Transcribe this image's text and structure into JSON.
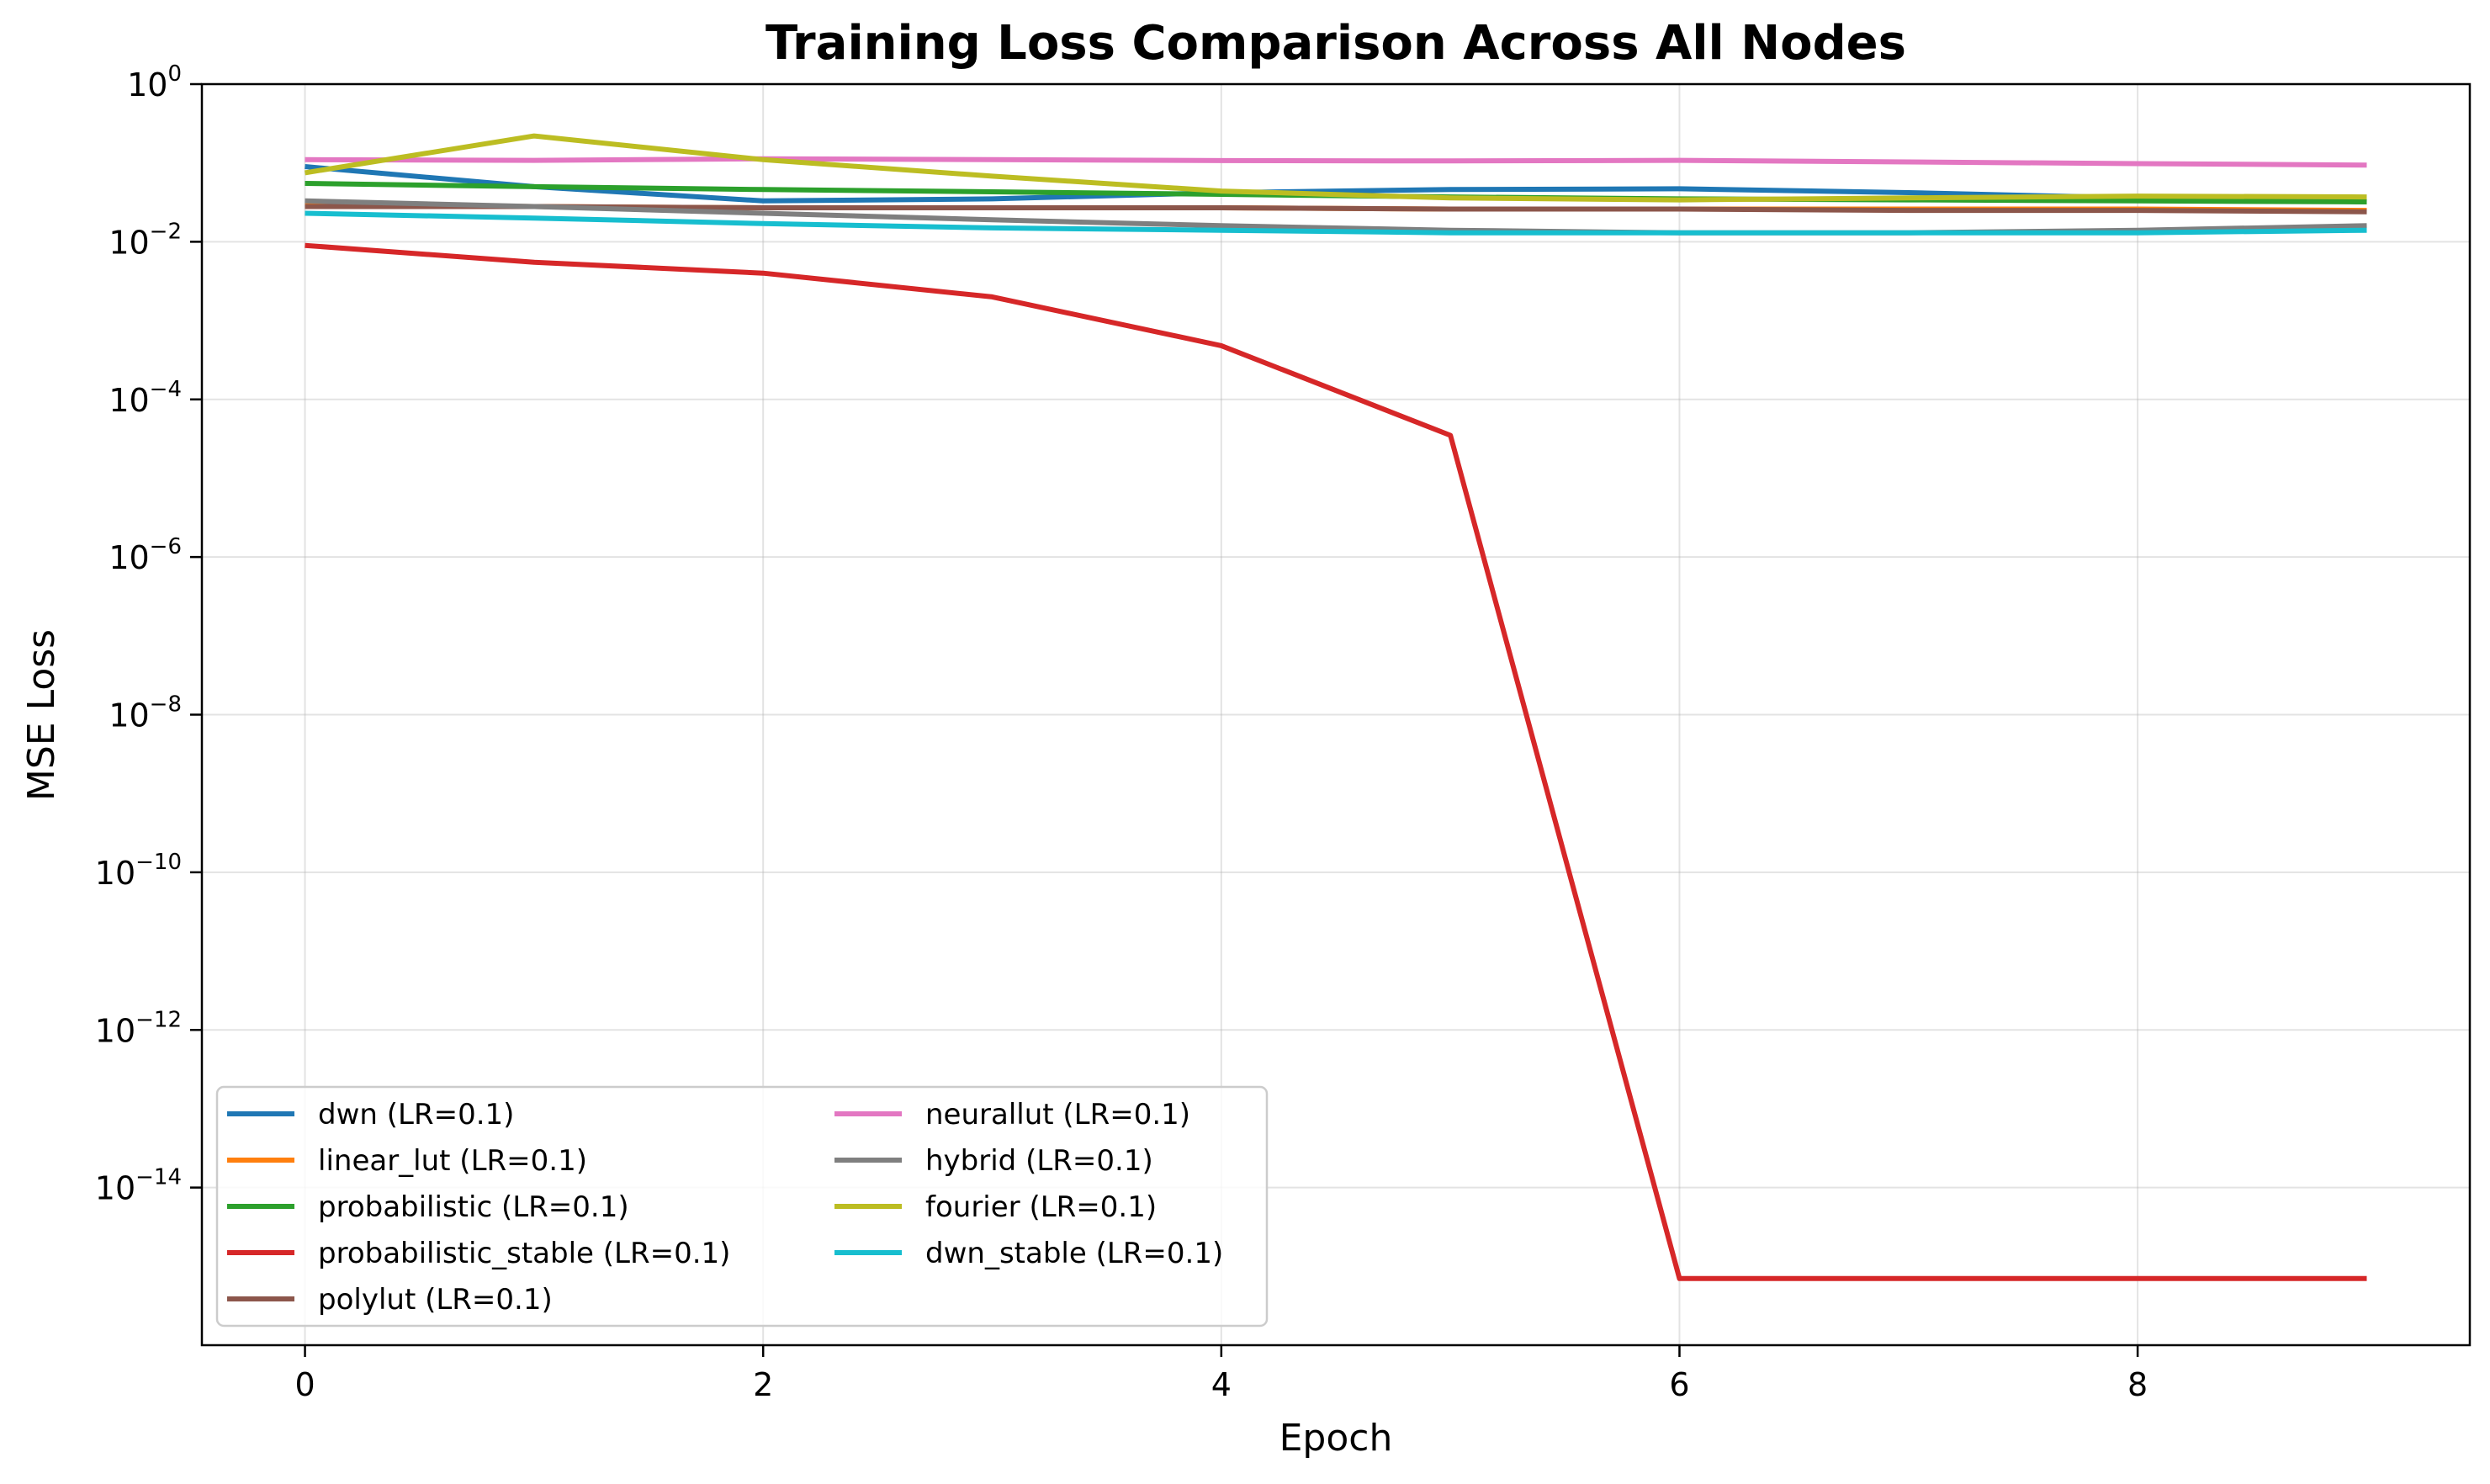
{
  "chart_data": {
    "type": "line",
    "title": "Training Loss Comparison Across All Nodes",
    "xlabel": "Epoch",
    "ylabel": "MSE Loss",
    "yscale": "log",
    "xlim": [
      -0.45,
      9.45
    ],
    "ylim": [
      1e-16,
      1
    ],
    "xticks": [
      0,
      2,
      4,
      6,
      8
    ],
    "yticks": [
      0,
      -2,
      -4,
      -6,
      -8,
      -10,
      -12,
      -14
    ],
    "ytick_base": "10",
    "grid": true,
    "legend_position": "lower-left",
    "legend_columns": 2,
    "x": [
      0,
      1,
      2,
      3,
      4,
      5,
      6,
      7,
      8,
      9
    ],
    "series": [
      {
        "name": "dwn (LR=0.1)",
        "color": "#1f77b4",
        "values": [
          0.09,
          0.05,
          0.033,
          0.035,
          0.042,
          0.046,
          0.047,
          0.042,
          0.036,
          0.032
        ]
      },
      {
        "name": "linear_lut (LR=0.1)",
        "color": "#ff7f0e",
        "values": [
          0.03,
          0.028,
          0.027,
          0.027,
          0.027,
          0.026,
          0.026,
          0.026,
          0.026,
          0.025
        ]
      },
      {
        "name": "probabilistic (LR=0.1)",
        "color": "#2ca02c",
        "values": [
          0.055,
          0.05,
          0.046,
          0.043,
          0.04,
          0.037,
          0.035,
          0.034,
          0.033,
          0.032
        ]
      },
      {
        "name": "probabilistic_stable (LR=0.1)",
        "color": "#d62728",
        "values": [
          0.009,
          0.0055,
          0.004,
          0.002,
          0.00048,
          3.5e-05,
          7e-16,
          7e-16,
          7e-16,
          7e-16
        ]
      },
      {
        "name": "polylut (LR=0.1)",
        "color": "#8c564b",
        "values": [
          0.028,
          0.028,
          0.027,
          0.027,
          0.027,
          0.026,
          0.026,
          0.025,
          0.025,
          0.024
        ]
      },
      {
        "name": "neurallut (LR=0.1)",
        "color": "#e377c2",
        "values": [
          0.11,
          0.108,
          0.113,
          0.11,
          0.107,
          0.106,
          0.108,
          0.103,
          0.098,
          0.094
        ]
      },
      {
        "name": "hybrid (LR=0.1)",
        "color": "#7f7f7f",
        "values": [
          0.033,
          0.028,
          0.023,
          0.019,
          0.016,
          0.014,
          0.013,
          0.013,
          0.014,
          0.016
        ]
      },
      {
        "name": "fourier (LR=0.1)",
        "color": "#bcbd22",
        "values": [
          0.075,
          0.22,
          0.11,
          0.068,
          0.044,
          0.036,
          0.034,
          0.036,
          0.038,
          0.037
        ]
      },
      {
        "name": "dwn_stable (LR=0.1)",
        "color": "#17becf",
        "values": [
          0.023,
          0.02,
          0.017,
          0.015,
          0.014,
          0.013,
          0.013,
          0.013,
          0.013,
          0.014
        ]
      }
    ]
  }
}
